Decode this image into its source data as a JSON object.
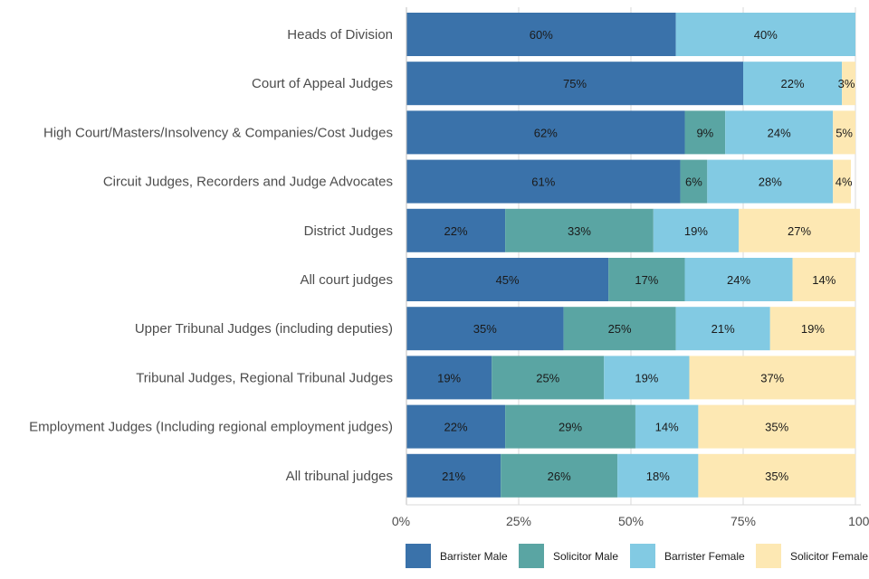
{
  "chart_data": {
    "type": "bar",
    "orientation": "horizontal",
    "stacked": true,
    "title": "",
    "xlabel": "",
    "ylabel": "",
    "xlim": [
      0,
      100
    ],
    "x_ticks": [
      0,
      25,
      50,
      75,
      100
    ],
    "x_tick_labels": [
      "0%",
      "25%",
      "50%",
      "75%",
      "100%"
    ],
    "grid": "vertical",
    "legend_position": "bottom",
    "categories": [
      "Heads of Division",
      "Court of Appeal Judges",
      "High Court/Masters/Insolvency & Companies/Cost Judges",
      "Circuit Judges, Recorders and Judge Advocates",
      "District Judges",
      "All court judges",
      "Upper Tribunal Judges (including deputies)",
      "Tribunal Judges, Regional Tribunal Judges",
      "Employment Judges (Including regional employment judges)",
      "All tribunal judges"
    ],
    "series": [
      {
        "name": "Barrister Male",
        "color": "#3a72aa",
        "values": [
          60,
          75,
          62,
          61,
          22,
          45,
          35,
          19,
          22,
          21
        ]
      },
      {
        "name": "Solicitor Male",
        "color": "#5aa5a3",
        "values": [
          0,
          0,
          9,
          6,
          33,
          17,
          25,
          25,
          29,
          26
        ]
      },
      {
        "name": "Barrister Female",
        "color": "#82cae3",
        "values": [
          40,
          22,
          24,
          28,
          19,
          24,
          21,
          19,
          14,
          18
        ]
      },
      {
        "name": "Solicitor Female",
        "color": "#fde8b3",
        "values": [
          0,
          3,
          5,
          4,
          27,
          14,
          19,
          37,
          35,
          35
        ]
      }
    ]
  }
}
